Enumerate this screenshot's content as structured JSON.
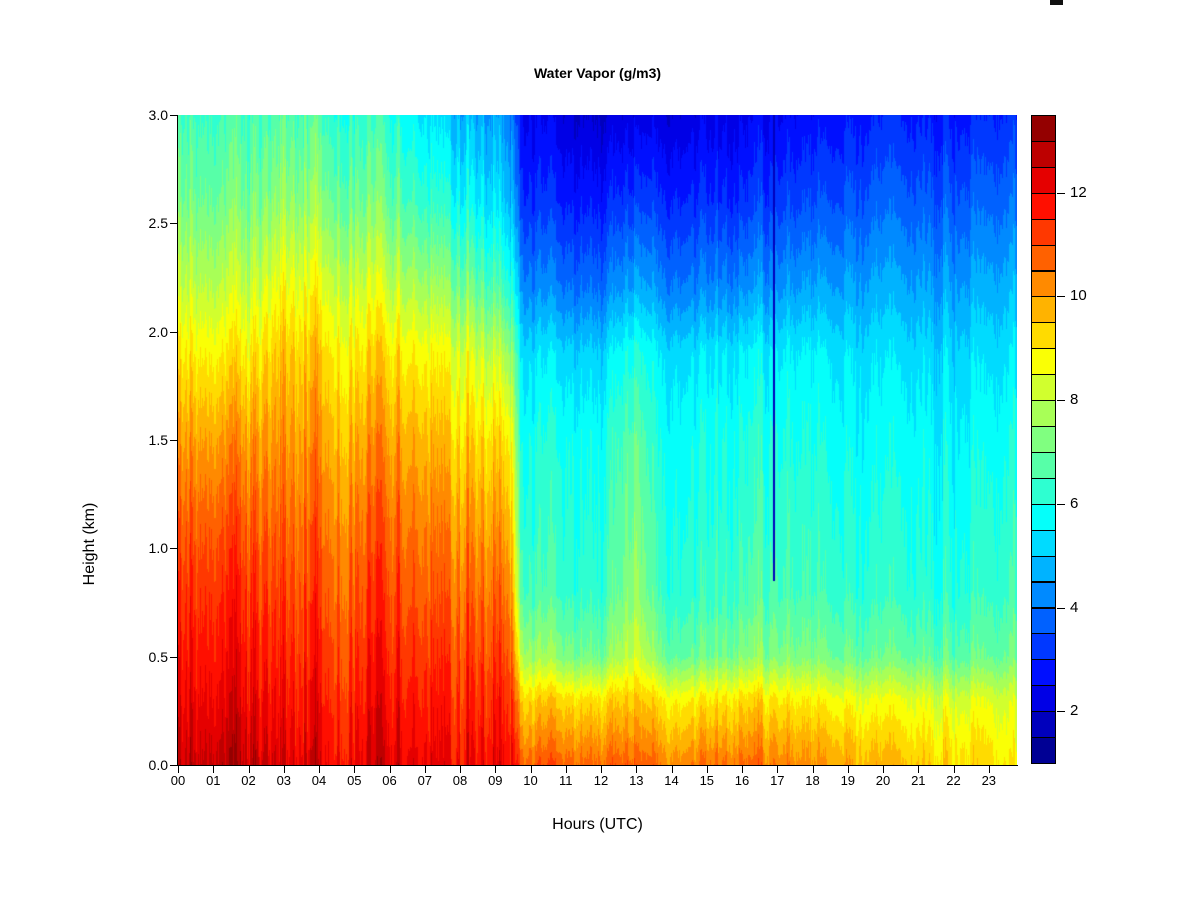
{
  "title": "Water Vapor (g/m3)",
  "xlabel": "Hours (UTC)",
  "ylabel": "Height (km)",
  "axes": {
    "x_tick_labels": [
      "00",
      "01",
      "02",
      "03",
      "04",
      "05",
      "06",
      "07",
      "08",
      "09",
      "10",
      "11",
      "12",
      "13",
      "14",
      "15",
      "16",
      "17",
      "18",
      "19",
      "20",
      "21",
      "22",
      "23"
    ],
    "y_tick_labels": [
      "0.0",
      "0.5",
      "1.0",
      "1.5",
      "2.0",
      "2.5",
      "3.0"
    ],
    "y_tick_values": [
      0,
      0.5,
      1.0,
      1.5,
      2.0,
      2.5,
      3.0
    ]
  },
  "colorbar": {
    "min": 1.0,
    "max": 13.5,
    "step": 0.5,
    "tick_values": [
      2,
      4,
      6,
      8,
      10,
      12
    ],
    "tick_labels": [
      "2",
      "4",
      "6",
      "8",
      "10",
      "12"
    ],
    "palette": "jet",
    "bottom_color": "#000080",
    "top_color": "#800000"
  },
  "chart_data": {
    "type": "heatmap",
    "title": "Water Vapor (g/m3)",
    "xlabel": "Hours (UTC)",
    "ylabel": "Height (km)",
    "xlim": [
      0,
      23.8
    ],
    "ylim": [
      0,
      3.0
    ],
    "zlim": [
      1.0,
      13.5
    ],
    "z_units": "g/m3",
    "x_hours": [
      0,
      1,
      2,
      3,
      4,
      5,
      6,
      7,
      8,
      9,
      9.4,
      9.7,
      10,
      11,
      12,
      13,
      13.5,
      14,
      15,
      16,
      17,
      18,
      19,
      20,
      21,
      22,
      23,
      23.8
    ],
    "y_km": [
      0,
      0.1,
      0.3,
      0.5,
      0.8,
      1.1,
      1.5,
      1.9,
      2.2,
      2.6,
      3.0
    ],
    "values_g_m3": [
      [
        12.4,
        12.8,
        12.7,
        12.4,
        12.3,
        12.3,
        12.2,
        12.1,
        12.0,
        12.0,
        11.9,
        11.0,
        10.8,
        10.6,
        10.6,
        10.9,
        10.6,
        10.5,
        10.5,
        10.7,
        10.2,
        10.0,
        9.9,
        9.7,
        9.5,
        9.3,
        9.1,
        8.8
      ],
      [
        12.2,
        12.6,
        12.5,
        12.2,
        12.1,
        12.1,
        12.0,
        11.9,
        11.8,
        11.8,
        11.7,
        10.5,
        10.2,
        10.1,
        10.1,
        10.4,
        10.1,
        10.0,
        10.0,
        10.2,
        9.8,
        9.7,
        9.6,
        9.4,
        9.2,
        9.1,
        8.9,
        8.6
      ],
      [
        11.9,
        12.2,
        12.1,
        11.9,
        11.8,
        11.8,
        11.7,
        11.6,
        11.5,
        11.5,
        11.4,
        9.6,
        9.3,
        9.1,
        9.1,
        9.6,
        9.2,
        9.1,
        9.0,
        9.3,
        8.9,
        8.8,
        8.7,
        8.6,
        8.5,
        8.4,
        8.3,
        8.2
      ],
      [
        11.6,
        11.9,
        11.8,
        11.6,
        11.5,
        11.5,
        11.4,
        11.3,
        11.2,
        11.1,
        11.0,
        8.2,
        7.6,
        7.1,
        7.0,
        8.4,
        7.4,
        7.1,
        7.0,
        7.4,
        7.1,
        7.1,
        7.0,
        7.0,
        6.9,
        6.9,
        6.8,
        7.0
      ],
      [
        11.2,
        11.5,
        11.4,
        11.2,
        11.1,
        11.1,
        11.0,
        10.8,
        10.7,
        10.6,
        10.4,
        6.9,
        6.5,
        6.2,
        6.2,
        7.6,
        6.6,
        6.4,
        6.3,
        6.6,
        6.4,
        6.4,
        6.3,
        6.3,
        6.2,
        6.2,
        6.2,
        6.4
      ],
      [
        10.7,
        11.0,
        10.9,
        10.8,
        10.7,
        10.7,
        10.6,
        10.4,
        10.2,
        10.0,
        9.8,
        6.5,
        6.2,
        6.0,
        6.0,
        7.4,
        6.4,
        6.2,
        6.1,
        6.4,
        6.2,
        6.2,
        6.1,
        6.1,
        6.0,
        6.0,
        6.0,
        6.2
      ],
      [
        9.9,
        10.1,
        10.1,
        10.2,
        10.1,
        10.0,
        9.9,
        9.7,
        9.4,
        9.2,
        9.0,
        6.1,
        5.9,
        5.8,
        5.8,
        7.0,
        6.1,
        6.0,
        5.9,
        6.1,
        5.9,
        5.9,
        5.8,
        5.8,
        5.8,
        5.7,
        5.7,
        5.9
      ],
      [
        8.9,
        9.0,
        9.0,
        9.6,
        9.4,
        9.2,
        9.0,
        8.8,
        8.5,
        8.0,
        7.6,
        5.6,
        5.3,
        5.1,
        5.1,
        6.2,
        5.6,
        5.5,
        5.4,
        5.6,
        5.4,
        5.5,
        5.4,
        5.4,
        5.3,
        5.3,
        5.2,
        5.4
      ],
      [
        8.0,
        8.1,
        8.1,
        8.8,
        8.6,
        8.4,
        8.0,
        7.7,
        7.3,
        6.6,
        6.2,
        4.6,
        4.2,
        3.9,
        3.9,
        4.8,
        4.4,
        4.3,
        4.2,
        4.4,
        4.3,
        4.5,
        4.6,
        4.7,
        4.6,
        4.6,
        4.6,
        4.8
      ],
      [
        7.0,
        7.1,
        7.1,
        7.6,
        7.4,
        7.2,
        6.8,
        6.3,
        5.9,
        5.3,
        4.9,
        3.4,
        3.1,
        2.8,
        2.8,
        3.4,
        3.2,
        3.2,
        3.1,
        3.2,
        3.2,
        3.4,
        3.6,
        3.8,
        3.7,
        3.7,
        3.7,
        3.9
      ],
      [
        6.4,
        6.5,
        6.5,
        6.8,
        6.6,
        6.4,
        6.0,
        5.4,
        4.9,
        4.5,
        4.2,
        2.7,
        2.4,
        2.0,
        1.9,
        2.3,
        2.2,
        2.3,
        2.3,
        2.4,
        2.4,
        2.6,
        2.8,
        3.0,
        2.9,
        2.9,
        2.9,
        3.1
      ]
    ],
    "features": [
      {
        "name": "narrow-dry-line",
        "hour": 16.9,
        "z_min_km": 0.85,
        "z_max_km": 3.0,
        "value_g_m3": 1.8
      }
    ],
    "legend_position": "right",
    "grid": false
  }
}
